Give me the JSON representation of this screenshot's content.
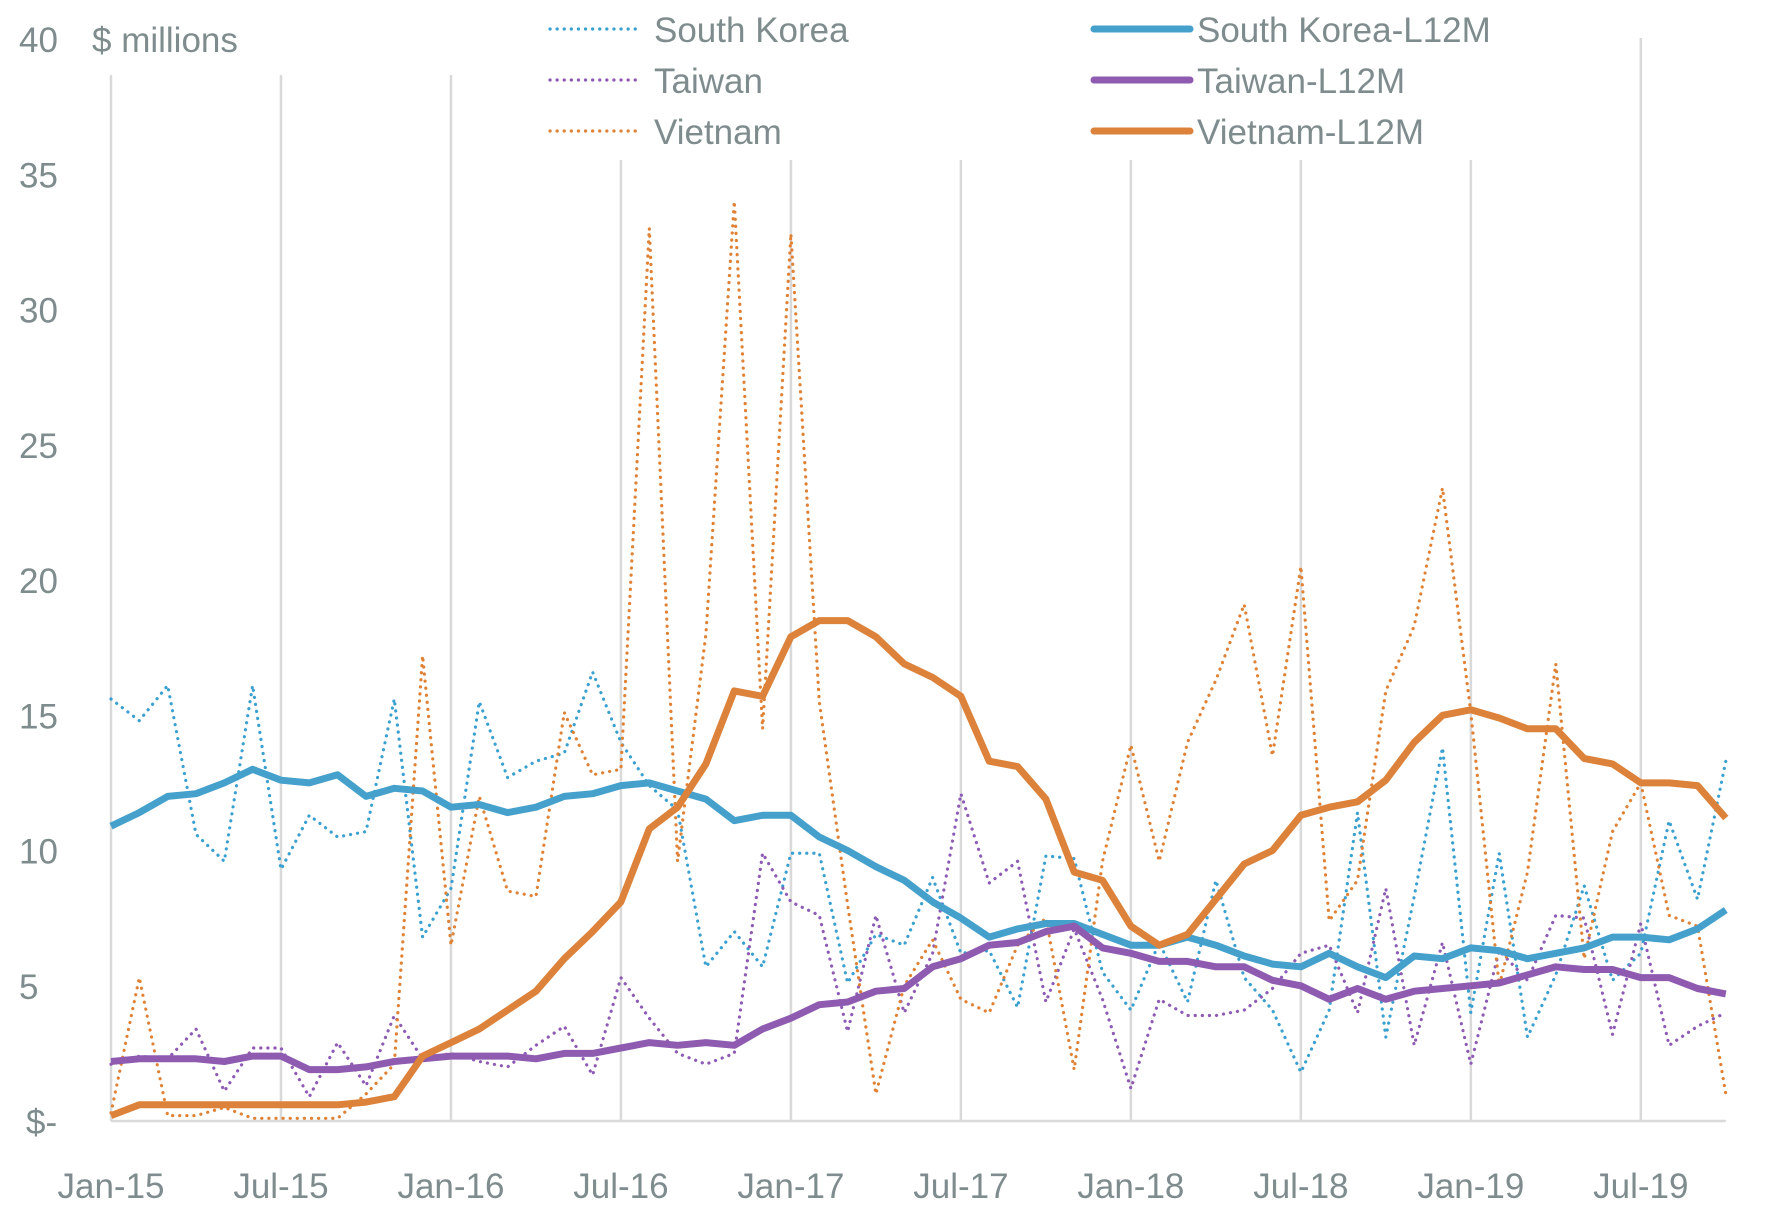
{
  "chart_data": {
    "type": "line",
    "title": "",
    "ylabel": "$ millions",
    "xlabel": "",
    "ylim": [
      0,
      40
    ],
    "yticks": [
      0,
      5,
      10,
      15,
      20,
      25,
      30,
      35,
      40
    ],
    "ytick_labels": [
      "$-",
      "5",
      "10",
      "15",
      "20",
      "25",
      "30",
      "35",
      "40"
    ],
    "xtick_labels": [
      "Jan-15",
      "Jul-15",
      "Jan-16",
      "Jul-16",
      "Jan-17",
      "Jul-17",
      "Jan-18",
      "Jul-18",
      "Jan-19",
      "Jul-19"
    ],
    "xtick_step_months": 6,
    "grid": "vertical",
    "legend_position": "top",
    "x": [
      "Jan-15",
      "Feb-15",
      "Mar-15",
      "Apr-15",
      "May-15",
      "Jun-15",
      "Jul-15",
      "Aug-15",
      "Sep-15",
      "Oct-15",
      "Nov-15",
      "Dec-15",
      "Jan-16",
      "Feb-16",
      "Mar-16",
      "Apr-16",
      "May-16",
      "Jun-16",
      "Jul-16",
      "Aug-16",
      "Sep-16",
      "Oct-16",
      "Nov-16",
      "Dec-16",
      "Jan-17",
      "Feb-17",
      "Mar-17",
      "Apr-17",
      "May-17",
      "Jun-17",
      "Jul-17",
      "Aug-17",
      "Sep-17",
      "Oct-17",
      "Nov-17",
      "Dec-17",
      "Jan-18",
      "Feb-18",
      "Mar-18",
      "Apr-18",
      "May-18",
      "Jun-18",
      "Jul-18",
      "Aug-18",
      "Sep-18",
      "Oct-18",
      "Nov-18",
      "Dec-18",
      "Jan-19",
      "Feb-19",
      "Mar-19",
      "Apr-19",
      "May-19",
      "Jun-19",
      "Jul-19",
      "Aug-19",
      "Sep-19",
      "Oct-19"
    ],
    "series": [
      {
        "name": "South Korea",
        "style": "dotted",
        "color": "#3aa0cf",
        "values": [
          15.6,
          14.8,
          16.1,
          10.6,
          9.6,
          16.1,
          9.3,
          11.3,
          10.5,
          10.7,
          15.6,
          6.8,
          8.6,
          15.5,
          12.7,
          13.3,
          13.6,
          16.6,
          14.0,
          12.4,
          11.5,
          5.7,
          7.0,
          5.7,
          9.9,
          9.9,
          5.1,
          6.9,
          6.5,
          9.0,
          6.2,
          6.3,
          4.2,
          9.8,
          9.7,
          5.5,
          4.1,
          6.6,
          4.4,
          8.9,
          5.3,
          4.1,
          1.8,
          4.1,
          11.4,
          3.1,
          8.3,
          13.8,
          4.0,
          9.9,
          3.1,
          5.4,
          8.7,
          5.2,
          6.2,
          11.1,
          8.2,
          13.3
        ]
      },
      {
        "name": "Taiwan",
        "style": "dotted",
        "color": "#8e5bb4",
        "values": [
          2.1,
          2.4,
          2.3,
          3.4,
          1.1,
          2.7,
          2.7,
          0.9,
          2.9,
          1.3,
          3.9,
          2.3,
          2.5,
          2.2,
          2.0,
          2.8,
          3.5,
          1.7,
          5.3,
          3.8,
          2.5,
          2.1,
          2.5,
          9.9,
          8.1,
          7.6,
          3.3,
          7.6,
          4.0,
          6.2,
          12.1,
          8.8,
          9.6,
          4.4,
          7.1,
          4.5,
          1.2,
          4.5,
          3.9,
          3.9,
          4.1,
          4.9,
          6.2,
          6.5,
          4.0,
          8.6,
          2.8,
          6.6,
          2.1,
          6.3,
          5.2,
          7.6,
          7.5,
          3.2,
          7.3,
          2.8,
          3.5,
          4.0
        ]
      },
      {
        "name": "Vietnam",
        "style": "dotted",
        "color": "#df8235",
        "values": [
          0.3,
          5.3,
          0.2,
          0.2,
          0.5,
          0.1,
          0.1,
          0.1,
          0.1,
          1.0,
          2.1,
          17.2,
          6.5,
          12.0,
          8.5,
          8.3,
          15.1,
          12.8,
          13.0,
          33.0,
          9.6,
          18.0,
          34.0,
          14.5,
          32.8,
          15.5,
          8.0,
          1.0,
          5.0,
          6.7,
          4.5,
          4.0,
          6.5,
          7.5,
          1.9,
          9.6,
          13.9,
          9.6,
          14.0,
          16.3,
          19.1,
          13.5,
          20.5,
          7.4,
          8.9,
          15.9,
          18.3,
          23.4,
          15.1,
          5.0,
          9.2,
          16.9,
          6.0,
          10.7,
          12.5,
          7.6,
          7.2,
          1.0
        ]
      },
      {
        "name": "South Korea-L12M",
        "style": "solid",
        "color": "#45a1cc",
        "values": [
          10.9,
          11.4,
          12.0,
          12.1,
          12.5,
          13.0,
          12.6,
          12.5,
          12.8,
          12.0,
          12.3,
          12.2,
          11.6,
          11.7,
          11.4,
          11.6,
          12.0,
          12.1,
          12.4,
          12.5,
          12.2,
          11.9,
          11.1,
          11.3,
          11.3,
          10.5,
          10.0,
          9.4,
          8.9,
          8.1,
          7.5,
          6.8,
          7.1,
          7.3,
          7.3,
          6.9,
          6.5,
          6.5,
          6.8,
          6.5,
          6.1,
          5.8,
          5.7,
          6.2,
          5.7,
          5.3,
          6.1,
          6.0,
          6.4,
          6.3,
          6.0,
          6.2,
          6.4,
          6.8,
          6.8,
          6.7,
          7.1,
          7.8
        ]
      },
      {
        "name": "Taiwan-L12M",
        "style": "solid",
        "color": "#8e5bb0",
        "values": [
          2.2,
          2.3,
          2.3,
          2.3,
          2.2,
          2.4,
          2.4,
          1.9,
          1.9,
          2.0,
          2.2,
          2.3,
          2.4,
          2.4,
          2.4,
          2.3,
          2.5,
          2.5,
          2.7,
          2.9,
          2.8,
          2.9,
          2.8,
          3.4,
          3.8,
          4.3,
          4.4,
          4.8,
          4.9,
          5.7,
          6.0,
          6.5,
          6.6,
          7.0,
          7.2,
          6.4,
          6.2,
          5.9,
          5.9,
          5.7,
          5.7,
          5.2,
          5.0,
          4.5,
          4.9,
          4.5,
          4.8,
          4.9,
          5.0,
          5.1,
          5.4,
          5.7,
          5.6,
          5.6,
          5.3,
          5.3,
          4.9,
          4.7
        ]
      },
      {
        "name": "Vietnam-L12M",
        "style": "solid",
        "color": "#dc823a",
        "values": [
          0.2,
          0.6,
          0.6,
          0.6,
          0.6,
          0.6,
          0.6,
          0.6,
          0.6,
          0.7,
          0.9,
          2.4,
          2.9,
          3.4,
          4.1,
          4.8,
          6.0,
          7.0,
          8.1,
          10.8,
          11.6,
          13.2,
          15.9,
          15.7,
          17.9,
          18.5,
          18.5,
          17.9,
          16.9,
          16.4,
          15.7,
          13.3,
          13.1,
          11.9,
          9.2,
          8.9,
          7.2,
          6.5,
          6.9,
          8.2,
          9.5,
          10.0,
          11.3,
          11.6,
          11.8,
          12.6,
          14.0,
          15.0,
          15.2,
          14.9,
          14.5,
          14.5,
          13.4,
          13.2,
          12.5,
          12.5,
          12.4,
          11.2
        ]
      }
    ]
  }
}
